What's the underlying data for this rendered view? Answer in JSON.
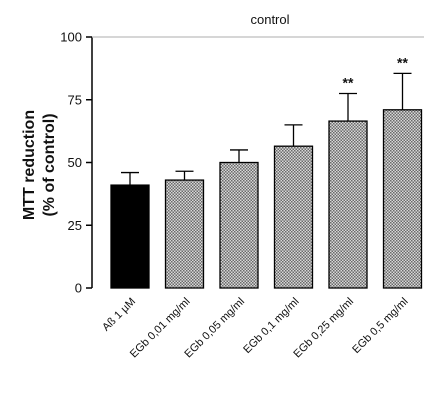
{
  "chart_data": {
    "type": "bar",
    "title": "",
    "reference_label": "control",
    "reference_value": 100,
    "ylabel_lines": [
      "MTT reduction",
      "(% of control)"
    ],
    "xlabel": "",
    "ylim": [
      0,
      100
    ],
    "yticks": [
      0,
      25,
      50,
      75,
      100
    ],
    "categories": [
      "Aß 1 µM",
      "EGb 0,01 mg/ml",
      "EGb 0,05 mg/ml",
      "EGb 0,1 mg/ml",
      "EGb 0,25 mg/ml",
      "EGb 0,5 mg/ml"
    ],
    "values": [
      41,
      43,
      50,
      56.5,
      66.5,
      71
    ],
    "errors": [
      5,
      3.5,
      5,
      8.5,
      11,
      14.5
    ],
    "significance": [
      "",
      "",
      "",
      "",
      "**",
      "**"
    ],
    "bar_colors": [
      "#000000",
      "hatched",
      "hatched",
      "hatched",
      "hatched",
      "hatched"
    ],
    "grid": false,
    "legend": "none"
  }
}
